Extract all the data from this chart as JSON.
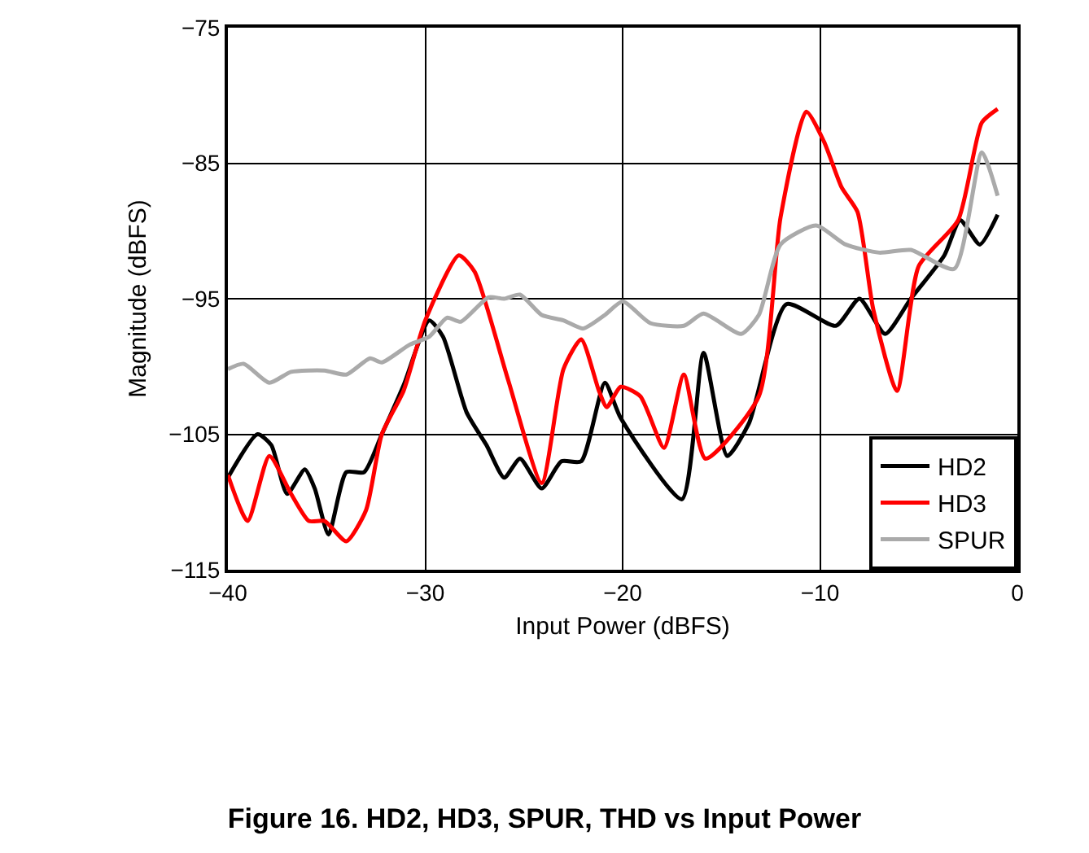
{
  "chart_data": {
    "type": "line",
    "title": "Figure 16. HD2, HD3, SPUR, THD vs Input Power",
    "xlabel": "Input Power (dBFS)",
    "ylabel": "Magnitude (dBFS)",
    "xlim": [
      -40,
      0
    ],
    "xticks": [
      -40,
      -30,
      -20,
      -10,
      0
    ],
    "ylim": [
      -115,
      -75
    ],
    "yticks": [
      -115,
      -105,
      -95,
      -85,
      -75
    ],
    "grid": true,
    "legend": "bottom right",
    "line_style": "solid",
    "marker": "none",
    "series": [
      {
        "name": "HD2",
        "color": "#000000",
        "x": [
          -40,
          -38.5,
          -37.8,
          -37,
          -36.1,
          -35.6,
          -34.9,
          -34,
          -33.1,
          -32.2,
          -31.1,
          -29.8,
          -29.1,
          -27.9,
          -26.9,
          -26,
          -25.2,
          -24.1,
          -23.1,
          -22.1,
          -20.9,
          -20.1,
          -17,
          -15.9,
          -14.7,
          -13.6,
          -11.7,
          -9.2,
          -8,
          -6.7,
          -5.4,
          -3.7,
          -2.9,
          -1.9,
          -1
        ],
        "values": [
          -108.2,
          -105,
          -105.8,
          -109.4,
          -107.6,
          -109,
          -112.4,
          -107.8,
          -107.8,
          -105,
          -101.4,
          -96.6,
          -97.8,
          -103.4,
          -105.8,
          -108.2,
          -106.8,
          -109,
          -107,
          -107,
          -101.2,
          -103.8,
          -109.8,
          -99,
          -106.6,
          -104.2,
          -95.4,
          -97,
          -95,
          -97.6,
          -95,
          -91.8,
          -89.2,
          -91,
          -88.8
        ]
      },
      {
        "name": "HD3",
        "color": "#ff0000",
        "x": [
          -40,
          -39,
          -37.9,
          -36.8,
          -35.9,
          -35.1,
          -34,
          -33,
          -32.2,
          -31.1,
          -30,
          -28.3,
          -27.5,
          -25.8,
          -24.1,
          -23,
          -22.1,
          -21.2,
          -20.8,
          -20.1,
          -19.1,
          -17.9,
          -16.9,
          -15.8,
          -13.1,
          -12,
          -10.7,
          -9.8,
          -8.9,
          -8.1,
          -7.3,
          -6.1,
          -5,
          -3,
          -1.8,
          -1
        ],
        "values": [
          -108,
          -111.4,
          -106.6,
          -109.4,
          -111.4,
          -111.4,
          -112.9,
          -110.6,
          -105,
          -101.8,
          -96.6,
          -91.8,
          -93,
          -101,
          -108.6,
          -100.2,
          -98,
          -101.8,
          -103,
          -101.5,
          -102.2,
          -106,
          -100.6,
          -106.8,
          -102.2,
          -89,
          -81.2,
          -83.4,
          -86.8,
          -88.6,
          -95.8,
          -101.8,
          -92.6,
          -89.2,
          -82,
          -81
        ]
      },
      {
        "name": "SPUR",
        "color": "#aaaaaa",
        "x": [
          -40,
          -39.2,
          -37.9,
          -36.8,
          -35.1,
          -34,
          -32.8,
          -32.2,
          -30.8,
          -29.8,
          -28.9,
          -28.2,
          -26.8,
          -26,
          -25.2,
          -24.1,
          -23,
          -22,
          -20.9,
          -20,
          -18.6,
          -16.9,
          -15.9,
          -14,
          -13.1,
          -12,
          -10.2,
          -8.7,
          -7,
          -5.4,
          -3.2,
          -1.8,
          -1
        ],
        "values": [
          -100.2,
          -99.8,
          -101.2,
          -100.4,
          -100.3,
          -100.6,
          -99.4,
          -99.7,
          -98.4,
          -97.8,
          -96.4,
          -96.7,
          -94.9,
          -95,
          -94.7,
          -96.2,
          -96.6,
          -97.2,
          -96.2,
          -95.2,
          -96.8,
          -97,
          -96.1,
          -97.6,
          -96.2,
          -91,
          -89.6,
          -91,
          -91.6,
          -91.4,
          -92.8,
          -84.2,
          -87.4
        ]
      }
    ]
  }
}
